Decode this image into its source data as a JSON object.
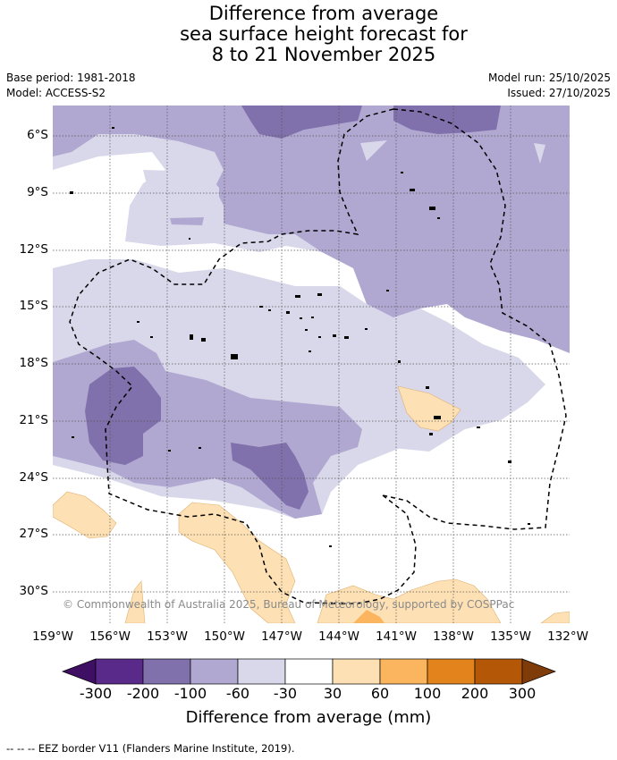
{
  "header": {
    "title_line1": "Difference from average",
    "title_line2": "sea surface height forecast for",
    "title_line3": "8 to 21 November 2025",
    "base_period": "Base period: 1981-2018",
    "model": "Model: ACCESS-S2",
    "model_run": "Model run: 25/10/2025",
    "issued": "Issued: 27/10/2025"
  },
  "map": {
    "latitude_labels": [
      "6°S",
      "9°S",
      "12°S",
      "15°S",
      "18°S",
      "21°S",
      "24°S",
      "27°S",
      "30°S"
    ],
    "longitude_labels": [
      "159°W",
      "156°W",
      "153°W",
      "150°W",
      "147°W",
      "144°W",
      "141°W",
      "138°W",
      "135°W",
      "132°W"
    ],
    "copyright": "© Commonwealth of Australia 2025, Bureau of Meteorology, supported by COSPPac"
  },
  "colorbar": {
    "labels": [
      "-300",
      "-200",
      "-100",
      "-60",
      "-30",
      "30",
      "60",
      "100",
      "200",
      "300"
    ],
    "colors": [
      "#3f0f63",
      "#5a2a8a",
      "#8070ab",
      "#b0a8d0",
      "#d8d8ea",
      "#ffffff",
      "#fde0b4",
      "#fbb55e",
      "#e2831b",
      "#b45808",
      "#7f3b08"
    ],
    "title": "Difference from average (mm)"
  },
  "footer": {
    "legend_text": "--  --  -- EEZ border V11 (Flanders Marine Institute, 2019)."
  }
}
